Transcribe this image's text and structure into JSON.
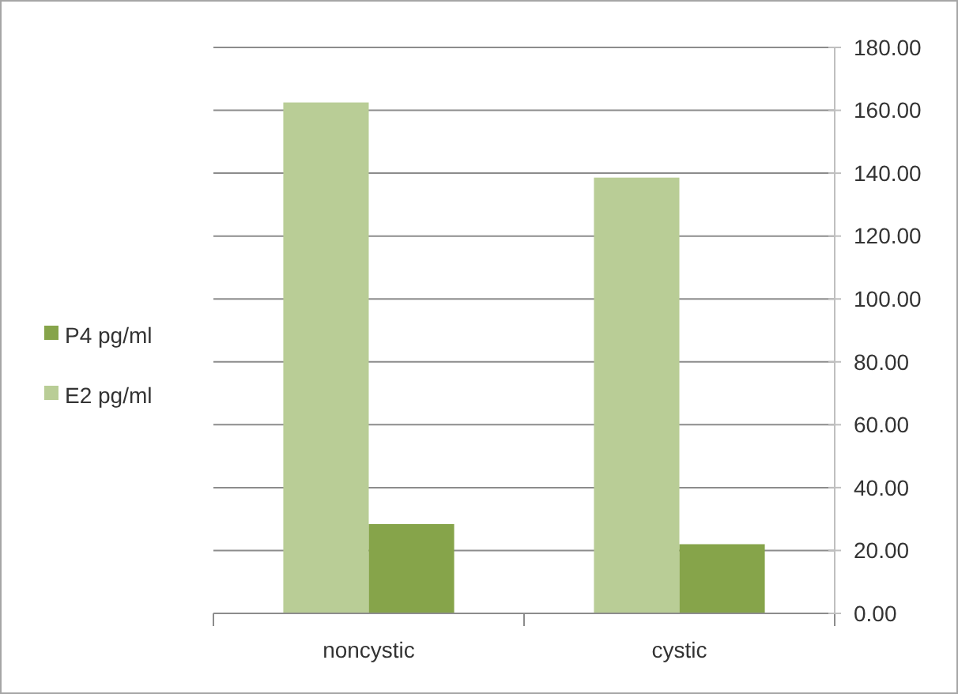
{
  "chart_data": {
    "type": "bar",
    "categories": [
      "noncystic",
      "cystic"
    ],
    "series": [
      {
        "name": "E2 pg/ml",
        "color": "#b9cd96",
        "values": [
          162.5,
          138.6
        ]
      },
      {
        "name": "P4 pg/ml",
        "color": "#86a44a",
        "values": [
          28.4,
          22.0
        ]
      }
    ],
    "ylim": [
      0,
      180
    ],
    "yticks": [
      {
        "value": 0,
        "label": "0.00"
      },
      {
        "value": 20,
        "label": "20.00"
      },
      {
        "value": 40,
        "label": "40.00"
      },
      {
        "value": 60,
        "label": "60.00"
      },
      {
        "value": 80,
        "label": "80.00"
      },
      {
        "value": 100,
        "label": "100.00"
      },
      {
        "value": 120,
        "label": "120.00"
      },
      {
        "value": 140,
        "label": "140.00"
      },
      {
        "value": 160,
        "label": "160.00"
      },
      {
        "value": 180,
        "label": "180.00"
      }
    ],
    "grid": "y",
    "legend": "left"
  }
}
